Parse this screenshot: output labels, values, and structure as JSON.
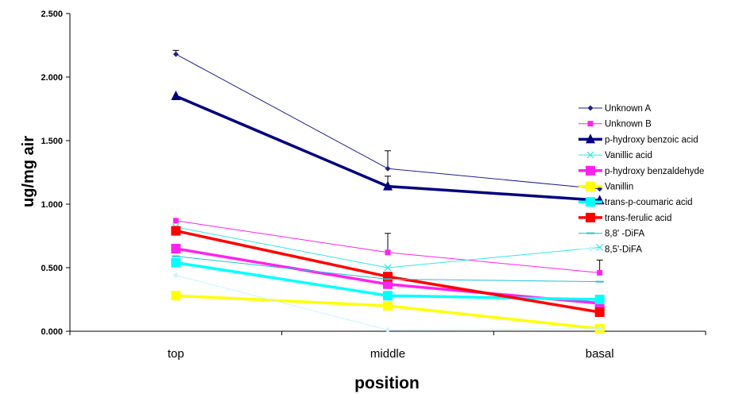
{
  "chart_data": {
    "type": "line",
    "title": "",
    "xlabel": "position",
    "ylabel": "ug/mg air",
    "categories": [
      "top",
      "middle",
      "basal"
    ],
    "ylim": [
      0,
      2.5
    ],
    "yticks": [
      "0.000",
      "0.500",
      "1.000",
      "1.500",
      "2.000",
      "2.500"
    ],
    "ytick_values": [
      0,
      0.5,
      1.0,
      1.5,
      2.0,
      2.5
    ],
    "grid": false,
    "legend_position": "right",
    "series": [
      {
        "name": "Unknown A",
        "values": [
          2.18,
          1.28,
          1.12
        ],
        "color": "#1f1f8f",
        "marker": "diamond",
        "width": "thin",
        "error": [
          0.03,
          0.14,
          null
        ]
      },
      {
        "name": "Unknown B",
        "values": [
          0.87,
          0.62,
          0.46
        ],
        "color": "#ff22ee",
        "marker": "square",
        "width": "thin",
        "error": [
          null,
          0.15,
          0.1
        ]
      },
      {
        "name": "p-hydroxy benzoic acid",
        "values": [
          1.85,
          1.14,
          1.03
        ],
        "color": "#00007f",
        "marker": "triangle",
        "width": "thick",
        "error": [
          null,
          0.08,
          null
        ]
      },
      {
        "name": "Vanillic acid",
        "values": [
          0.82,
          0.5,
          0.66
        ],
        "color": "#33e6e6",
        "marker": "x",
        "width": "thin",
        "error": [
          null,
          null,
          null
        ]
      },
      {
        "name": "p-hydroxy benzaldehyde",
        "values": [
          0.65,
          0.37,
          0.22
        ],
        "color": "#ff22ee",
        "marker": "square",
        "width": "thick",
        "error": [
          null,
          null,
          null
        ]
      },
      {
        "name": "Vanillin",
        "values": [
          0.28,
          0.2,
          0.02
        ],
        "color": "#ffff00",
        "marker": "square",
        "width": "thick",
        "error": [
          null,
          null,
          null
        ]
      },
      {
        "name": "trans-p-coumaric acid",
        "values": [
          0.54,
          0.28,
          0.25
        ],
        "color": "#00ffff",
        "marker": "square",
        "width": "thick",
        "error": [
          null,
          null,
          null
        ]
      },
      {
        "name": "trans-ferulic acid",
        "values": [
          0.79,
          0.43,
          0.15
        ],
        "color": "#ff0000",
        "marker": "square",
        "width": "thick",
        "error": [
          null,
          null,
          null
        ]
      },
      {
        "name": "8,8' -DiFA",
        "values": [
          0.59,
          0.41,
          0.39
        ],
        "color": "#20c0d8",
        "marker": "dash",
        "width": "thin",
        "error": [
          null,
          null,
          null
        ]
      },
      {
        "name": "8,5'-DiFA",
        "values": [
          0.44,
          0.01,
          0.02
        ],
        "color": "#c8f4ff",
        "marker": "diamond",
        "width": "thin",
        "error": [
          null,
          null,
          null
        ]
      }
    ]
  }
}
